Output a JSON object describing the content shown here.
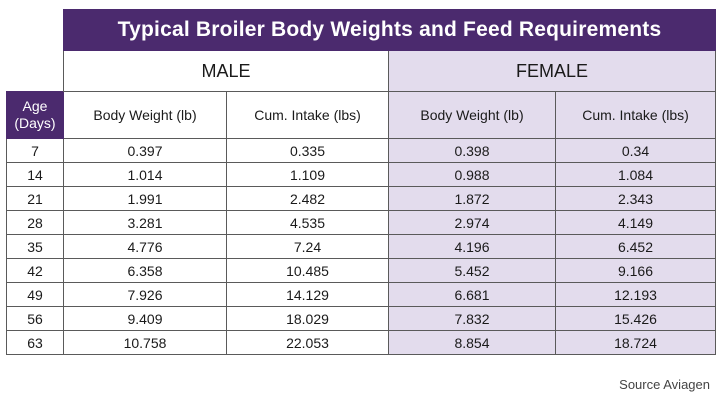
{
  "chart_data": {
    "type": "table",
    "title": "Typical Broiler Body Weights and Feed Requirements",
    "groups": [
      "MALE",
      "FEMALE"
    ],
    "age_header": [
      "Age",
      "(Days)"
    ],
    "columns": [
      "Body Weight (lb)",
      "Cum. Intake (lbs)",
      "Body Weight (lb)",
      "Cum. Intake (lbs)"
    ],
    "rows": [
      {
        "age": "7",
        "values": [
          "0.397",
          "0.335",
          "0.398",
          "0.34"
        ]
      },
      {
        "age": "14",
        "values": [
          "1.014",
          "1.109",
          "0.988",
          "1.084"
        ]
      },
      {
        "age": "21",
        "values": [
          "1.991",
          "2.482",
          "1.872",
          "2.343"
        ]
      },
      {
        "age": "28",
        "values": [
          "3.281",
          "4.535",
          "2.974",
          "4.149"
        ]
      },
      {
        "age": "35",
        "values": [
          "4.776",
          "7.24",
          "4.196",
          "6.452"
        ]
      },
      {
        "age": "42",
        "values": [
          "6.358",
          "10.485",
          "5.452",
          "9.166"
        ]
      },
      {
        "age": "49",
        "values": [
          "7.926",
          "14.129",
          "6.681",
          "12.193"
        ]
      },
      {
        "age": "56",
        "values": [
          "9.409",
          "18.029",
          "7.832",
          "15.426"
        ]
      },
      {
        "age": "63",
        "values": [
          "10.758",
          "22.053",
          "8.854",
          "18.724"
        ]
      }
    ],
    "source": "Source Aviagen",
    "colors": {
      "header_purple": "#4b2a6e",
      "female_shade": "#e3dced"
    }
  }
}
